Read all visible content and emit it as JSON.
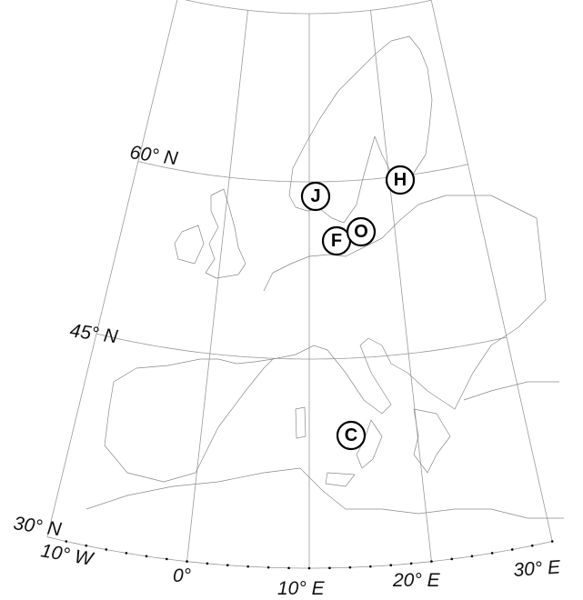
{
  "parallel_labels": [
    "60° N",
    "45° N",
    "30° N"
  ],
  "meridian_labels": [
    "10° W",
    "0°",
    "10° E",
    "20° E",
    "30° E"
  ],
  "markers": [
    "J",
    "F",
    "O",
    "H",
    "C"
  ]
}
